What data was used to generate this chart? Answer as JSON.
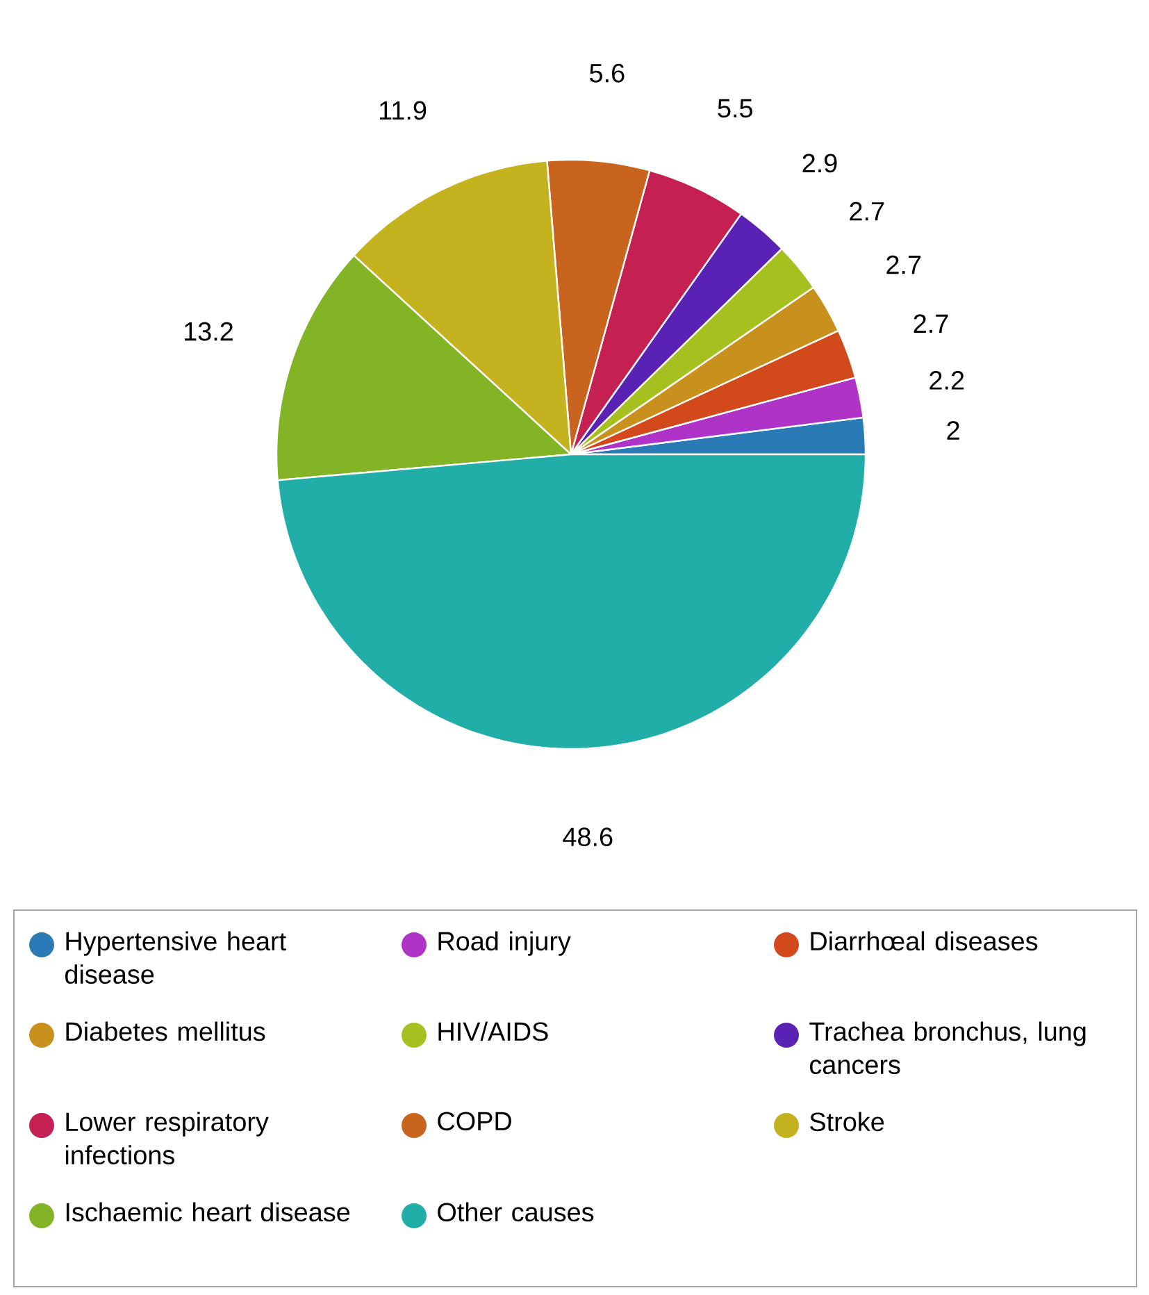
{
  "chart_data": {
    "type": "pie",
    "categories": [
      "Hypertensive heart disease",
      "Road injury",
      "Diarrhœal diseases",
      "Diabetes mellitus",
      "HIV/AIDS",
      "Trachea bronchus, lung cancers",
      "Lower respiratory infections",
      "COPD",
      "Stroke",
      "Ischaemic heart disease",
      "Other causes"
    ],
    "values": [
      2,
      2.2,
      2.7,
      2.7,
      2.7,
      2.9,
      5.5,
      5.6,
      11.9,
      13.2,
      48.6
    ],
    "colors": [
      "#2a7ab5",
      "#b033c8",
      "#d24a1c",
      "#c8901c",
      "#a6c020",
      "#5a22b4",
      "#c42052",
      "#c8641e",
      "#c4b21e",
      "#82b426",
      "#22aea8"
    ],
    "data_labels": true,
    "legend": "bottom"
  }
}
